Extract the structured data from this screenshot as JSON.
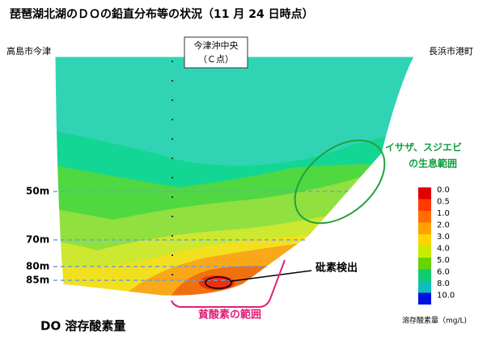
{
  "title": "琵琶湖北湖のＤＯの鉛直分布等の状況（11 月 24 日時点）",
  "locations": {
    "left": "高島市今津",
    "right": "長浜市港町",
    "center_line1": "今津沖中央",
    "center_line2": "（Ｃ点）"
  },
  "depths": [
    "50m",
    "70m",
    "80m",
    "85m"
  ],
  "annotations": {
    "habitat_line1": "イサザ、スジエビ",
    "habitat_line2": "の生息範囲",
    "arsenic": "砒素検出",
    "hypoxia": "貧酸素の範囲",
    "do_label": "DO 溶存酸素量"
  },
  "legend": {
    "title": "溶存酸素量（mg/L)",
    "items": [
      {
        "label": "0.0",
        "color": "#e00000"
      },
      {
        "label": "0.5",
        "color": "#ff3a00"
      },
      {
        "label": "1.0",
        "color": "#ff6e00"
      },
      {
        "label": "2.0",
        "color": "#ffa200"
      },
      {
        "label": "3.0",
        "color": "#ffd400"
      },
      {
        "label": "4.0",
        "color": "#c8ec00"
      },
      {
        "label": "5.0",
        "color": "#66d400"
      },
      {
        "label": "6.0",
        "color": "#10cc70"
      },
      {
        "label": "8.0",
        "color": "#10bcbc"
      },
      {
        "label": "10.0",
        "color": "#0010e0"
      }
    ]
  }
}
